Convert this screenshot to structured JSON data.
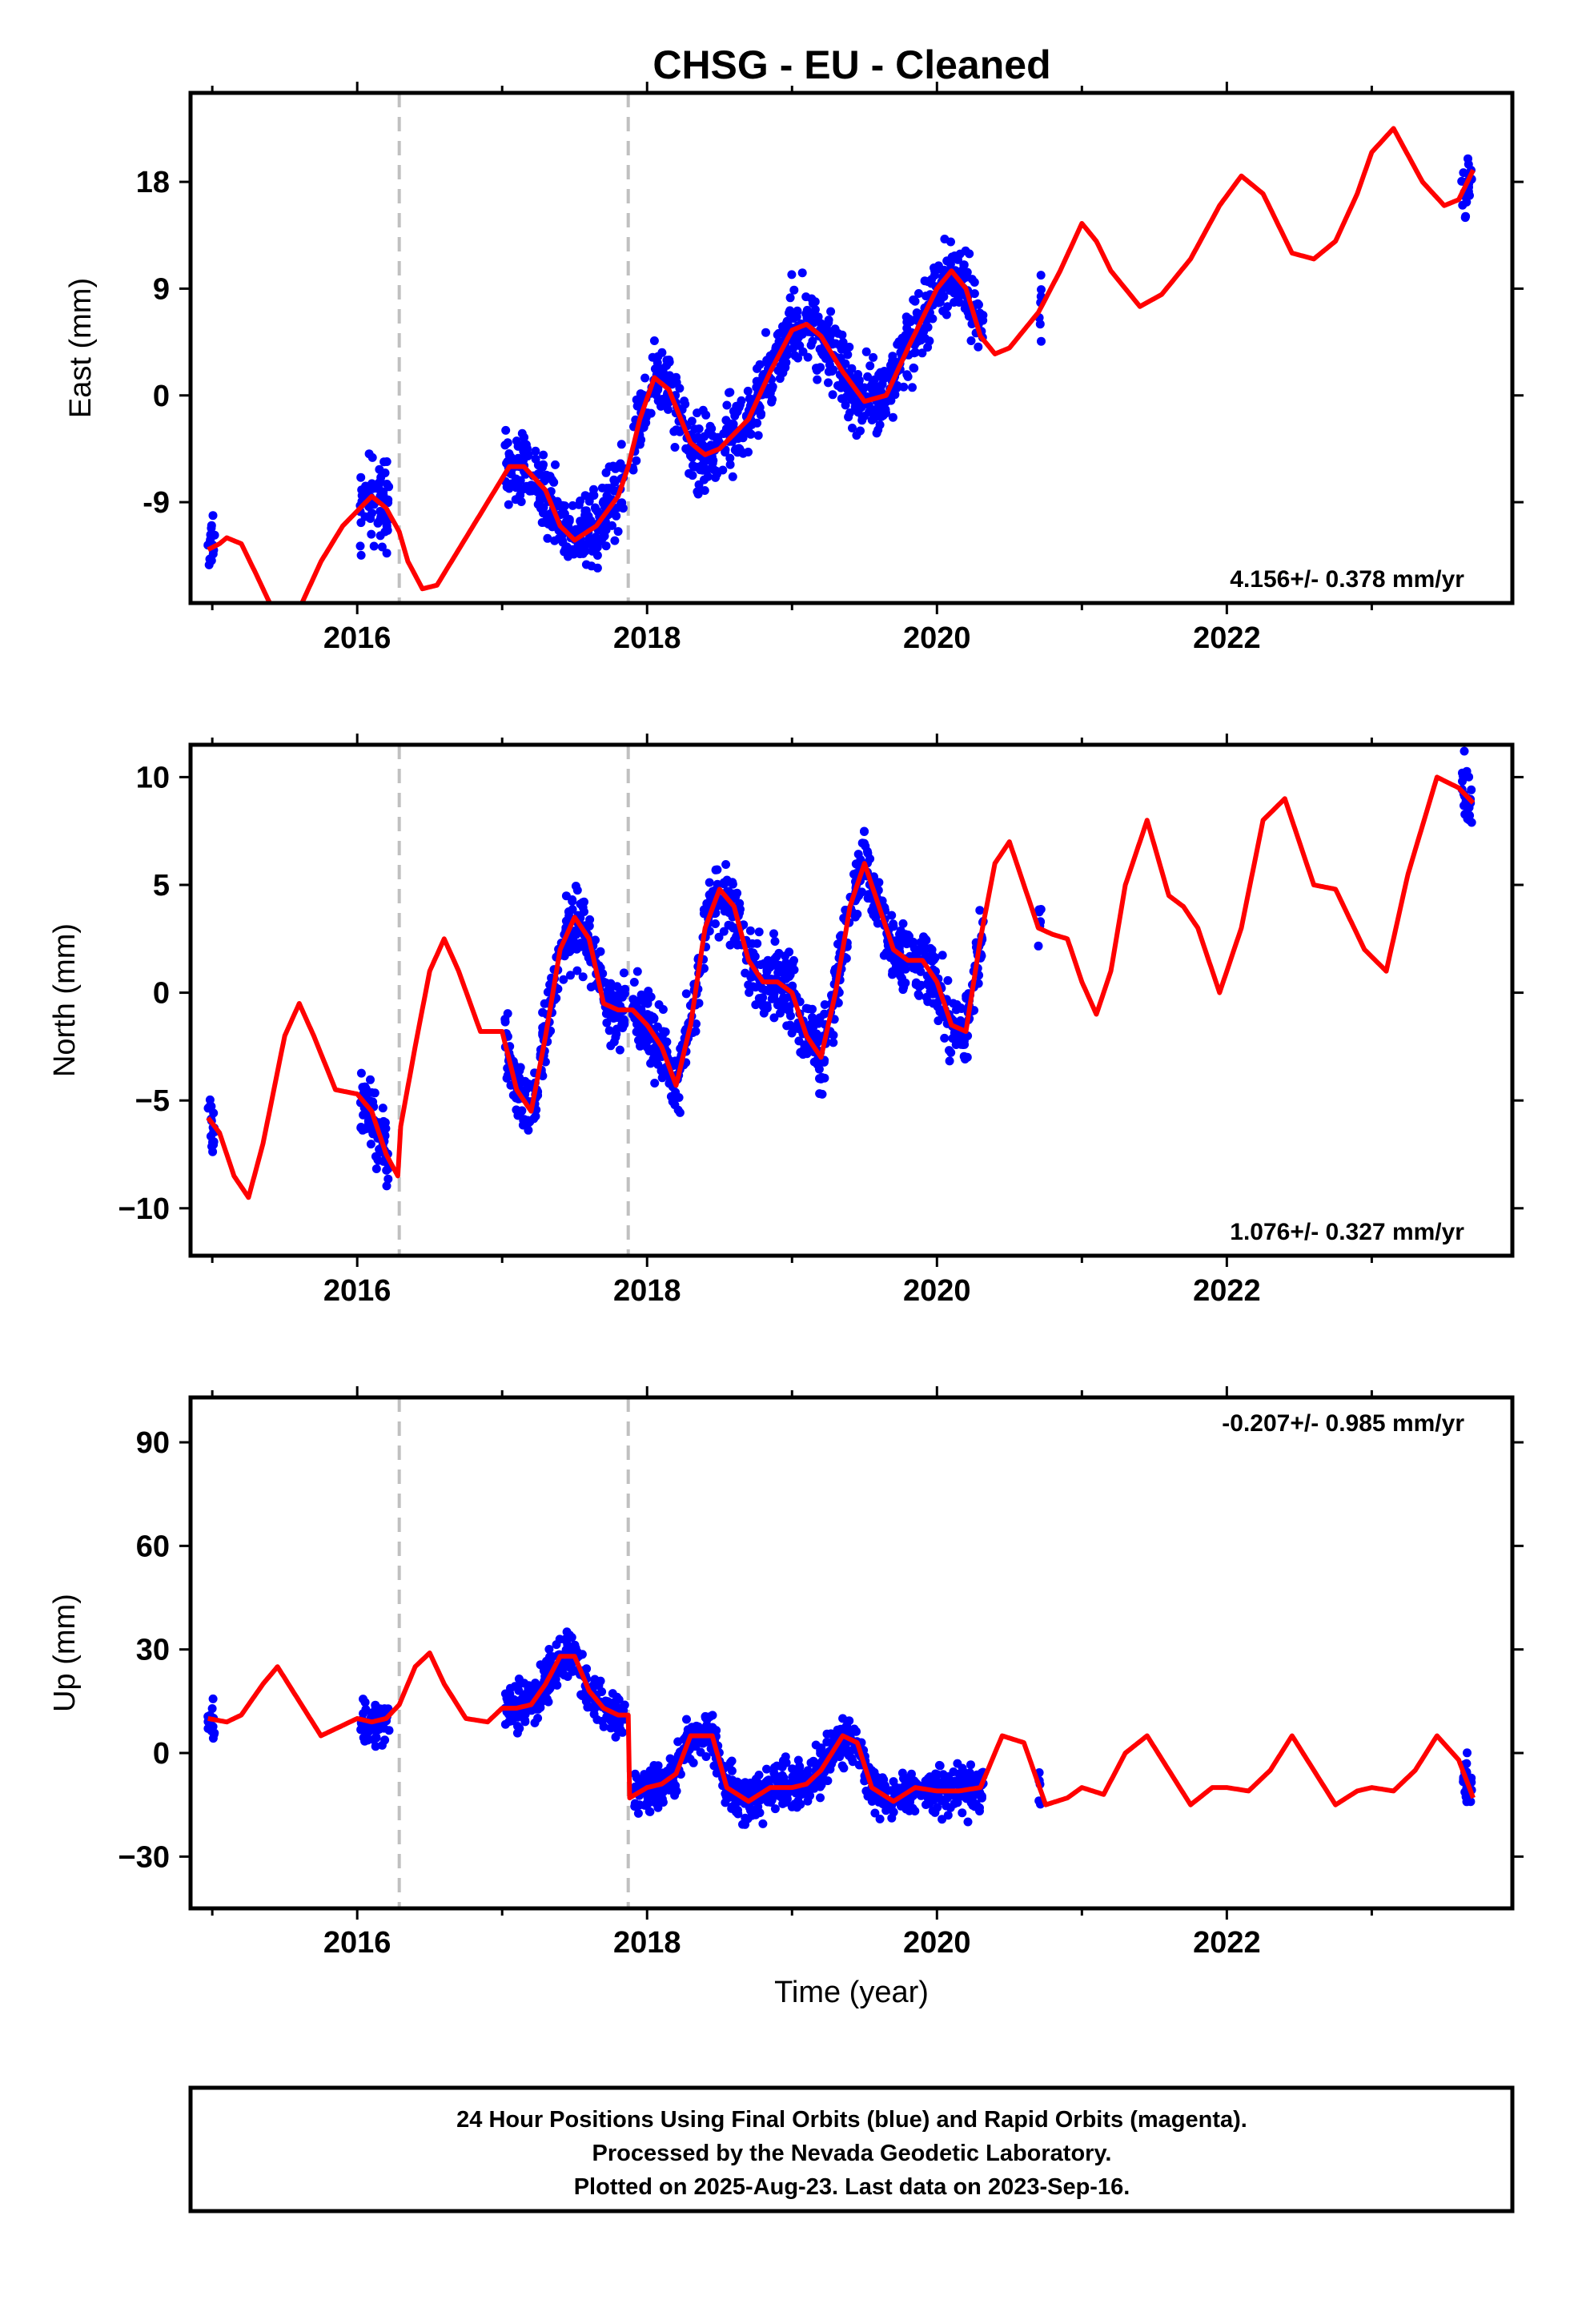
{
  "title": "CHSG  - EU - Cleaned",
  "colors": {
    "data": "#0000ff",
    "model": "#ff0000",
    "offset_line": "#c0c0c0"
  },
  "chart_data": [
    {
      "type": "scatter",
      "panel": "east",
      "ylabel": "East (mm)",
      "xlabel": "",
      "xlim": [
        2014.85,
        2023.97
      ],
      "ylim": [
        -17.5,
        25.5
      ],
      "x_ticks": [
        "2016",
        "2018",
        "2020",
        "2022"
      ],
      "y_ticks": [
        "-9",
        "0",
        "9",
        "18"
      ],
      "rate_label": "4.156+/- 0.378 mm/yr",
      "offsets": [
        2016.29,
        2017.87
      ],
      "model_x": [
        2014.97,
        2015.05,
        2015.1,
        2015.2,
        2015.3,
        2015.4,
        2015.5,
        2015.6,
        2015.75,
        2015.9,
        2016.1,
        2016.2,
        2016.29,
        2016.35,
        2016.45,
        2016.55,
        2016.7,
        2016.9,
        2017.05,
        2017.15,
        2017.3,
        2017.4,
        2017.5,
        2017.65,
        2017.8,
        2017.87,
        2017.95,
        2018.05,
        2018.15,
        2018.3,
        2018.4,
        2018.5,
        2018.7,
        2018.85,
        2019.0,
        2019.1,
        2019.2,
        2019.35,
        2019.5,
        2019.65,
        2019.8,
        2020.0,
        2020.1,
        2020.2,
        2020.3,
        2020.4,
        2020.5,
        2020.6,
        2020.7,
        2020.85,
        2021.0,
        2021.1,
        2021.2,
        2021.4,
        2021.55,
        2021.75,
        2021.95,
        2022.1,
        2022.25,
        2022.45,
        2022.6,
        2022.75,
        2022.9,
        2023.0,
        2023.15,
        2023.35,
        2023.5,
        2023.6,
        2023.7
      ],
      "model_y": [
        -13,
        -12.5,
        -12,
        -12.5,
        -15,
        -17.6,
        -18.5,
        -18,
        -14,
        -11,
        -8.5,
        -9.5,
        -11.5,
        -14,
        -16.3,
        -16,
        -13,
        -9,
        -6,
        -6,
        -8,
        -11,
        -12.2,
        -11,
        -8.5,
        -6,
        -2,
        1.5,
        0.5,
        -4,
        -5,
        -4.5,
        -2,
        2,
        5.5,
        6,
        5,
        2,
        -0.5,
        0,
        4,
        9,
        10.5,
        9,
        5,
        3.5,
        4,
        5.5,
        7,
        10.5,
        14.5,
        13,
        10.5,
        7.5,
        8.5,
        11.5,
        16,
        18.5,
        17,
        12,
        11.5,
        13,
        17,
        20.5,
        22.5,
        18,
        16,
        16.5,
        19
      ]
    },
    {
      "type": "scatter",
      "panel": "north",
      "ylabel": "North (mm)",
      "xlabel": "",
      "xlim": [
        2014.85,
        2023.97
      ],
      "ylim": [
        -12.2,
        11.5
      ],
      "x_ticks": [
        "2016",
        "2018",
        "2020",
        "2022"
      ],
      "y_ticks": [
        "−10",
        "−5",
        "0",
        "5",
        "10"
      ],
      "rate_label": "1.076+/- 0.327 mm/yr",
      "offsets": [
        2016.29,
        2017.87
      ],
      "model_x": [
        2014.97,
        2015.05,
        2015.15,
        2015.25,
        2015.35,
        2015.5,
        2015.6,
        2015.7,
        2015.85,
        2016.0,
        2016.1,
        2016.2,
        2016.28,
        2016.3,
        2016.4,
        2016.5,
        2016.6,
        2016.7,
        2016.85,
        2017.0,
        2017.1,
        2017.2,
        2017.3,
        2017.4,
        2017.5,
        2017.6,
        2017.7,
        2017.8,
        2017.9,
        2018.0,
        2018.1,
        2018.2,
        2018.3,
        2018.4,
        2018.5,
        2018.6,
        2018.7,
        2018.8,
        2018.9,
        2019.0,
        2019.1,
        2019.2,
        2019.3,
        2019.4,
        2019.5,
        2019.6,
        2019.7,
        2019.8,
        2019.9,
        2020.0,
        2020.1,
        2020.2,
        2020.3,
        2020.4,
        2020.5,
        2020.6,
        2020.7,
        2020.8,
        2020.9,
        2021.0,
        2021.1,
        2021.2,
        2021.3,
        2021.45,
        2021.6,
        2021.7,
        2021.8,
        2021.95,
        2022.1,
        2022.25,
        2022.4,
        2022.6,
        2022.75,
        2022.95,
        2023.1,
        2023.25,
        2023.45,
        2023.6,
        2023.7
      ],
      "model_y": [
        -5.8,
        -6.5,
        -8.5,
        -9.5,
        -7,
        -2,
        -0.5,
        -2,
        -4.5,
        -4.7,
        -5.5,
        -7.5,
        -8.5,
        -6.2,
        -2.5,
        1,
        2.5,
        1,
        -1.8,
        -1.8,
        -4.5,
        -5.5,
        -2,
        2,
        3.5,
        2.5,
        -0.5,
        -0.8,
        -0.8,
        -1.5,
        -2.5,
        -4.3,
        -1.5,
        3,
        4.8,
        4,
        1.5,
        0.5,
        0.5,
        0,
        -2,
        -3,
        0,
        4,
        6,
        4,
        2,
        1.5,
        1.5,
        0.5,
        -1.5,
        -1.8,
        2.5,
        6,
        7,
        5,
        3,
        2.7,
        2.5,
        0.5,
        -1,
        1,
        5,
        8,
        4.5,
        4,
        3,
        0,
        3,
        8,
        9,
        5,
        4.8,
        2,
        1,
        5.5,
        10,
        9.5,
        8.8
      ]
    },
    {
      "type": "scatter",
      "panel": "up",
      "ylabel": "Up (mm)",
      "xlabel": "Time (year)",
      "xlim": [
        2014.85,
        2023.97
      ],
      "ylim": [
        -45,
        103
      ],
      "x_ticks": [
        "2016",
        "2018",
        "2020",
        "2022"
      ],
      "y_ticks": [
        "−30",
        "0",
        "30",
        "60",
        "90"
      ],
      "rate_label": "-0.207+/- 0.985 mm/yr",
      "offsets": [
        2016.29,
        2017.87
      ],
      "model_x": [
        2014.97,
        2015.1,
        2015.2,
        2015.35,
        2015.45,
        2015.6,
        2015.75,
        2015.9,
        2016.0,
        2016.1,
        2016.2,
        2016.29,
        2016.3,
        2016.4,
        2016.5,
        2016.6,
        2016.75,
        2016.9,
        2017.0,
        2017.1,
        2017.2,
        2017.3,
        2017.4,
        2017.5,
        2017.6,
        2017.7,
        2017.8,
        2017.87,
        2017.88,
        2018.0,
        2018.1,
        2018.2,
        2018.3,
        2018.45,
        2018.55,
        2018.7,
        2018.85,
        2019.0,
        2019.1,
        2019.2,
        2019.35,
        2019.45,
        2019.55,
        2019.7,
        2019.85,
        2020.0,
        2020.15,
        2020.3,
        2020.45,
        2020.6,
        2020.75,
        2020.9,
        2021.0,
        2021.15,
        2021.3,
        2021.45,
        2021.6,
        2021.75,
        2021.9,
        2022.0,
        2022.15,
        2022.3,
        2022.45,
        2022.6,
        2022.75,
        2022.9,
        2023.0,
        2023.15,
        2023.3,
        2023.45,
        2023.6,
        2023.7
      ],
      "model_y": [
        10,
        9,
        11,
        20,
        25,
        15,
        5,
        8,
        10,
        9,
        10,
        14,
        15,
        25,
        29,
        20,
        10,
        9,
        13,
        13,
        14,
        20,
        28,
        28,
        18,
        13,
        11,
        11,
        -13,
        -10,
        -9,
        -6,
        5,
        5,
        -10,
        -14,
        -10,
        -10,
        -9,
        -5,
        5,
        3,
        -10,
        -14,
        -10,
        -11,
        -11,
        -10,
        5,
        3,
        -15,
        -13,
        -10,
        -12,
        0,
        5,
        -5,
        -15,
        -10,
        -10,
        -11,
        -5,
        5,
        -5,
        -15,
        -11,
        -10,
        -11,
        -5,
        5,
        -2,
        -13
      ]
    }
  ],
  "caption": {
    "line1": "24 Hour Positions Using Final Orbits (blue) and Rapid Orbits (magenta).",
    "line2": "Processed by the Nevada Geodetic Laboratory.",
    "line3": "Plotted on 2025-Aug-23. Last data on 2023-Sep-16."
  }
}
